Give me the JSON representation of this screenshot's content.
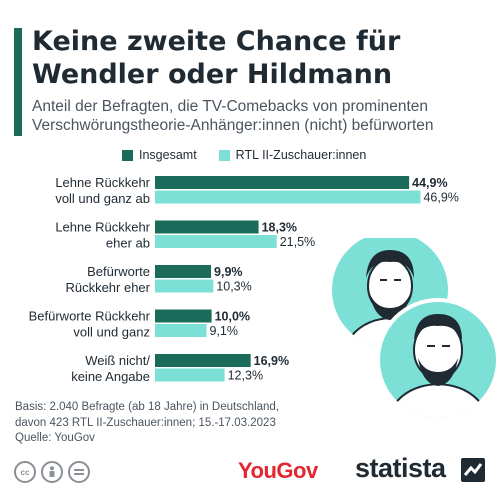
{
  "title": "Keine zweite Chance für Wendler oder Hildmann",
  "subtitle": "Anteil der Befragten, die TV-Comebacks von prominenten Verschwörungstheorie-Anhänger:innen (nicht) befürworten",
  "colors": {
    "accent": "#1a6b5a",
    "series_dark": "#1a6b5a",
    "series_light": "#7de0d6",
    "brand_red": "#e3262f"
  },
  "footnote": {
    "line1": "Basis: 2.040 Befragte (ab 18 Jahre) in Deutschland,",
    "line2": "davon 423 RTL II-Zuschauer:innen; 15.-17.03.2023",
    "source": "Quelle: YouGov"
  },
  "license_icons": [
    "cc-icon",
    "person-icon",
    "equals-icon"
  ],
  "brand": {
    "yougov": "YouGov",
    "statista": "statista"
  },
  "chart_data": {
    "type": "bar",
    "orientation": "horizontal",
    "categories": [
      [
        "Lehne Rückkehr",
        "voll und ganz ab"
      ],
      [
        "Lehne Rückkehr",
        "eher ab"
      ],
      [
        "Befürworte",
        "Rückkehr eher"
      ],
      [
        "Befürworte Rückkehr",
        "voll und ganz"
      ],
      [
        "Weiß nicht/",
        "keine Angabe"
      ]
    ],
    "series": [
      {
        "name": "Insgesamt",
        "values": [
          44.9,
          18.3,
          9.9,
          10.0,
          16.9
        ],
        "labels": [
          "44,9%",
          "18,3%",
          "9,9%",
          "10,0%",
          "16,9%"
        ],
        "color": "#1a6b5a",
        "bold_labels": true
      },
      {
        "name": "RTL II-Zuschauer:innen",
        "values": [
          46.9,
          21.5,
          10.3,
          9.1,
          12.3
        ],
        "labels": [
          "46,9%",
          "21,5%",
          "10,3%",
          "9,1%",
          "12,3%"
        ],
        "color": "#7de0d6",
        "bold_labels": false
      }
    ],
    "xlim": [
      0,
      50
    ],
    "grid": false,
    "legend": "top"
  }
}
